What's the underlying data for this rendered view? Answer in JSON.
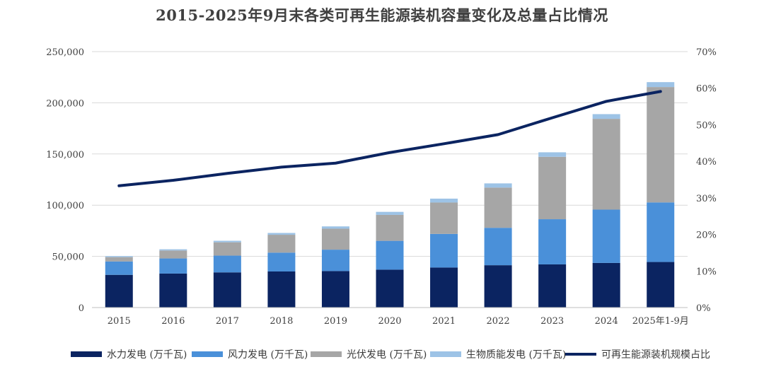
{
  "chart_data": {
    "type": "bar",
    "stacked": true,
    "title": "2015-2025年9月末各类可再生能源装机容量变化及总量占比情况",
    "categories": [
      "2015",
      "2016",
      "2017",
      "2018",
      "2019",
      "2020",
      "2021",
      "2022",
      "2023",
      "2024",
      "2025年1-9月"
    ],
    "series": [
      {
        "name": "水力发电 (万千瓦)",
        "axis": "left",
        "color": "#0b2461",
        "values": [
          31954,
          33207,
          34359,
          35226,
          35640,
          37016,
          39092,
          41350,
          42154,
          43595,
          44500
        ]
      },
      {
        "name": "风力发电 (万千瓦)",
        "axis": "left",
        "color": "#4a90d9",
        "values": [
          13075,
          14747,
          16367,
          18427,
          20915,
          28153,
          32848,
          36544,
          44134,
          52068,
          58200
        ]
      },
      {
        "name": "光伏发电 (万千瓦)",
        "axis": "left",
        "color": "#a6a6a6",
        "values": [
          4218,
          7742,
          13025,
          17433,
          20468,
          25343,
          30656,
          39261,
          60949,
          88666,
          112700
        ]
      },
      {
        "name": "生物质能发电 (万千瓦)",
        "axis": "left",
        "color": "#9dc3e6",
        "values": [
          1031,
          1214,
          1476,
          1781,
          2254,
          2952,
          3798,
          4132,
          4414,
          4599,
          4800
        ]
      },
      {
        "name": "可再生能源装机规模占比",
        "axis": "right",
        "type": "line",
        "color": "#0b2461",
        "values": [
          33.3,
          34.8,
          36.7,
          38.4,
          39.5,
          42.4,
          44.8,
          47.3,
          51.9,
          56.4,
          59.1
        ]
      }
    ],
    "y_left": {
      "min": 0,
      "max": 250000,
      "step": 50000,
      "ticks": [
        "0",
        "50,000",
        "100,000",
        "150,000",
        "200,000",
        "250,000"
      ]
    },
    "y_right": {
      "min": 0,
      "max": 70,
      "step": 10,
      "ticks": [
        "0%",
        "10%",
        "20%",
        "30%",
        "40%",
        "50%",
        "60%",
        "70%"
      ]
    },
    "grid": true,
    "legend_position": "bottom"
  }
}
